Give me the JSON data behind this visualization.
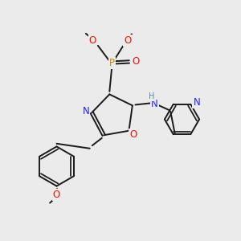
{
  "bg_color": "#ebebeb",
  "bond_color": "#1a1a1a",
  "colors": {
    "N": "#2020ff",
    "O": "#ee1100",
    "P": "#cc8800",
    "H": "#4a9090",
    "C": "#1a1a1a"
  },
  "lw": 1.4,
  "doff": 0.06,
  "fs": 8.5,
  "fs_sm": 7.0
}
